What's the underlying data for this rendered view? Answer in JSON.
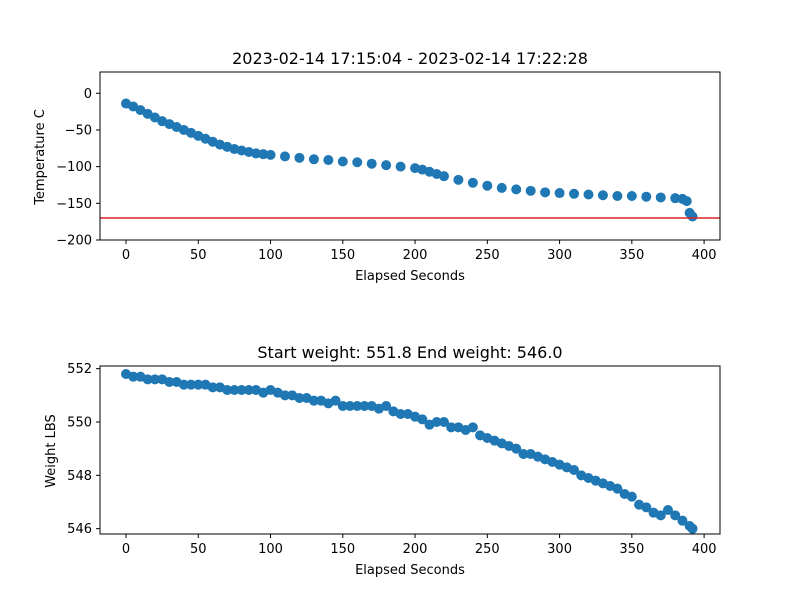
{
  "chart_data": [
    {
      "type": "scatter",
      "title": "2023-02-14 17:15:04 - 2023-02-14 17:22:28",
      "xlabel": "Elapsed Seconds",
      "ylabel": "Temperature C",
      "xlim": [
        -18,
        411
      ],
      "ylim": [
        -200,
        29
      ],
      "xticks": [
        0,
        50,
        100,
        150,
        200,
        250,
        300,
        350,
        400
      ],
      "yticks": [
        -200,
        -150,
        -100,
        -50,
        0
      ],
      "marker_color": "#1f77b4",
      "reference_line": {
        "y": -170,
        "color": "#d62728"
      },
      "series": [
        {
          "x": [
            0,
            5,
            10,
            15,
            20,
            25,
            30,
            35,
            40,
            45,
            50,
            55,
            60,
            65,
            70,
            75,
            80,
            85,
            90,
            95,
            100,
            110,
            120,
            130,
            140,
            150,
            160,
            170,
            180,
            190,
            200,
            205,
            210,
            215,
            220,
            230,
            240,
            250,
            260,
            270,
            280,
            290,
            300,
            310,
            320,
            330,
            340,
            350,
            360,
            370,
            380,
            385,
            388,
            390,
            392
          ],
          "y": [
            -14,
            -18,
            -23,
            -28,
            -33,
            -38,
            -42,
            -46,
            -50,
            -54,
            -58,
            -62,
            -66,
            -70,
            -73,
            -76,
            -78,
            -80,
            -82,
            -83,
            -84,
            -86,
            -88,
            -90,
            -91,
            -93,
            -94,
            -96,
            -98,
            -100,
            -102,
            -104,
            -107,
            -110,
            -113,
            -118,
            -122,
            -126,
            -129,
            -131,
            -133,
            -135,
            -136,
            -137,
            -138,
            -139,
            -140,
            -140,
            -141,
            -142,
            -143,
            -144,
            -147,
            -163,
            -168
          ]
        }
      ]
    },
    {
      "type": "scatter",
      "title": "Start weight: 551.8 End weight: 546.0",
      "xlabel": "Elapsed Seconds",
      "ylabel": "Weight LBS",
      "xlim": [
        -18,
        411
      ],
      "ylim": [
        545.8,
        552.1
      ],
      "xticks": [
        0,
        50,
        100,
        150,
        200,
        250,
        300,
        350,
        400
      ],
      "yticks": [
        546,
        548,
        550,
        552
      ],
      "marker_color": "#1f77b4",
      "series": [
        {
          "x": [
            0,
            5,
            10,
            15,
            20,
            25,
            30,
            35,
            40,
            45,
            50,
            55,
            60,
            65,
            70,
            75,
            80,
            85,
            90,
            95,
            100,
            105,
            110,
            115,
            120,
            125,
            130,
            135,
            140,
            145,
            150,
            155,
            160,
            165,
            170,
            175,
            180,
            185,
            190,
            195,
            200,
            205,
            210,
            215,
            220,
            225,
            230,
            235,
            240,
            245,
            250,
            255,
            260,
            265,
            270,
            275,
            280,
            285,
            290,
            295,
            300,
            305,
            310,
            315,
            320,
            325,
            330,
            335,
            340,
            345,
            350,
            355,
            360,
            365,
            370,
            375,
            380,
            385,
            390,
            392
          ],
          "y": [
            551.8,
            551.7,
            551.7,
            551.6,
            551.6,
            551.6,
            551.5,
            551.5,
            551.4,
            551.4,
            551.4,
            551.4,
            551.3,
            551.3,
            551.2,
            551.2,
            551.2,
            551.2,
            551.2,
            551.1,
            551.2,
            551.1,
            551.0,
            551.0,
            550.9,
            550.9,
            550.8,
            550.8,
            550.7,
            550.8,
            550.6,
            550.6,
            550.6,
            550.6,
            550.6,
            550.5,
            550.6,
            550.4,
            550.3,
            550.3,
            550.2,
            550.1,
            549.9,
            550.0,
            550.0,
            549.8,
            549.8,
            549.7,
            549.8,
            549.5,
            549.4,
            549.3,
            549.2,
            549.1,
            549.0,
            548.8,
            548.8,
            548.7,
            548.6,
            548.5,
            548.4,
            548.3,
            548.2,
            548.0,
            547.9,
            547.8,
            547.7,
            547.6,
            547.5,
            547.3,
            547.2,
            546.9,
            546.8,
            546.6,
            546.5,
            546.7,
            546.5,
            546.3,
            546.1,
            546.0
          ]
        }
      ]
    }
  ]
}
